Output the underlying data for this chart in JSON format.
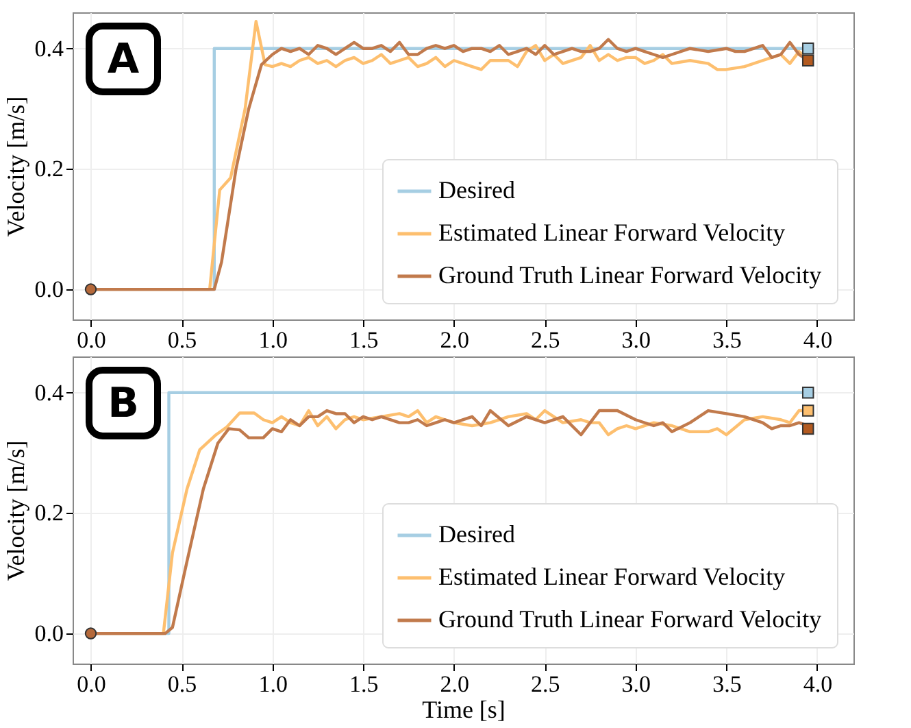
{
  "chart_data": [
    {
      "type": "line",
      "annotations": [
        "A"
      ],
      "ylabel": "Velocity [m/s]",
      "xlim": [
        -0.1,
        4.2
      ],
      "ylim": [
        -0.05,
        0.46
      ],
      "xticks": [
        {
          "value": 0,
          "label": "0.0"
        },
        0.5,
        {
          "value": 1,
          "label": "1.0"
        },
        1.5,
        {
          "value": 2,
          "label": "2.0"
        },
        2.5,
        {
          "value": 3,
          "label": "3.0"
        },
        3.5,
        {
          "value": 4,
          "label": "4.0"
        }
      ],
      "yticks": [
        {
          "value": 0,
          "label": "0.0"
        },
        {
          "value": 0.2,
          "label": "0.2"
        },
        {
          "value": 0.4,
          "label": "0.4"
        }
      ],
      "grid": true,
      "legend": "bottom right",
      "line_style": "solid",
      "marker": "none",
      "series": [
        {
          "name": "Desired",
          "color": "#a6cee3",
          "x": [
            0,
            0.68,
            0.68,
            3.95
          ],
          "values": [
            0,
            0,
            0.4,
            0.4
          ]
        },
        {
          "name": "Estimated Linear Forward Velocity",
          "color": "#fdbf6f",
          "x": [
            0,
            0.655,
            0.71,
            0.77,
            0.85,
            0.91,
            0.96,
            1.0,
            1.05,
            1.1,
            1.15,
            1.2,
            1.25,
            1.3,
            1.35,
            1.4,
            1.45,
            1.5,
            1.55,
            1.6,
            1.65,
            1.7,
            1.75,
            1.8,
            1.85,
            1.9,
            1.95,
            2.0,
            2.1,
            2.15,
            2.2,
            2.3,
            2.35,
            2.4,
            2.45,
            2.5,
            2.55,
            2.6,
            2.7,
            2.75,
            2.8,
            2.85,
            2.9,
            2.95,
            3.0,
            3.05,
            3.1,
            3.15,
            3.2,
            3.3,
            3.4,
            3.45,
            3.5,
            3.6,
            3.7,
            3.75,
            3.8,
            3.85,
            3.9,
            3.95
          ],
          "values": [
            0,
            0,
            0.165,
            0.185,
            0.3,
            0.445,
            0.373,
            0.37,
            0.375,
            0.37,
            0.38,
            0.385,
            0.375,
            0.38,
            0.37,
            0.38,
            0.385,
            0.375,
            0.38,
            0.39,
            0.375,
            0.38,
            0.385,
            0.37,
            0.375,
            0.385,
            0.37,
            0.38,
            0.37,
            0.365,
            0.38,
            0.38,
            0.37,
            0.395,
            0.405,
            0.38,
            0.39,
            0.375,
            0.385,
            0.405,
            0.38,
            0.39,
            0.38,
            0.385,
            0.385,
            0.375,
            0.38,
            0.39,
            0.375,
            0.38,
            0.375,
            0.365,
            0.365,
            0.37,
            0.38,
            0.385,
            0.39,
            0.375,
            0.395,
            0.38
          ]
        },
        {
          "name": "Ground Truth Linear Forward Velocity",
          "color": "#c17a4c",
          "x": [
            0,
            0.68,
            0.72,
            0.8,
            0.87,
            0.94,
            1.0,
            1.05,
            1.1,
            1.15,
            1.2,
            1.25,
            1.3,
            1.35,
            1.4,
            1.45,
            1.5,
            1.55,
            1.6,
            1.65,
            1.7,
            1.75,
            1.8,
            1.85,
            1.9,
            1.95,
            2.0,
            2.05,
            2.1,
            2.15,
            2.2,
            2.25,
            2.3,
            2.35,
            2.4,
            2.45,
            2.5,
            2.55,
            2.6,
            2.65,
            2.7,
            2.75,
            2.8,
            2.85,
            2.9,
            2.95,
            3.0,
            3.05,
            3.1,
            3.15,
            3.2,
            3.3,
            3.4,
            3.5,
            3.55,
            3.6,
            3.7,
            3.75,
            3.8,
            3.85,
            3.9,
            3.95
          ],
          "values": [
            0,
            0,
            0.045,
            0.2,
            0.3,
            0.373,
            0.39,
            0.4,
            0.395,
            0.4,
            0.39,
            0.405,
            0.4,
            0.39,
            0.4,
            0.41,
            0.4,
            0.4,
            0.405,
            0.395,
            0.41,
            0.39,
            0.39,
            0.4,
            0.405,
            0.4,
            0.405,
            0.395,
            0.4,
            0.4,
            0.395,
            0.405,
            0.39,
            0.395,
            0.4,
            0.39,
            0.405,
            0.39,
            0.395,
            0.4,
            0.395,
            0.395,
            0.4,
            0.415,
            0.4,
            0.395,
            0.4,
            0.395,
            0.39,
            0.385,
            0.39,
            0.4,
            0.395,
            0.4,
            0.395,
            0.395,
            0.405,
            0.385,
            0.39,
            0.41,
            0.39,
            0.38
          ]
        },
        {
          "type": "scatter",
          "marker": "circle",
          "color": "#b5693a",
          "x": [
            0
          ],
          "values": [
            0
          ]
        },
        {
          "type": "scatter",
          "marker": "square",
          "colors": [
            "#a6cee3",
            "#b35a1f"
          ],
          "x": [
            3.95,
            3.95
          ],
          "values": [
            0.4,
            0.38
          ]
        }
      ]
    },
    {
      "type": "line",
      "annotations": [
        "B"
      ],
      "xlabel": "Time [s]",
      "ylabel": "Velocity [m/s]",
      "xlim": [
        -0.1,
        4.2
      ],
      "ylim": [
        -0.05,
        0.46
      ],
      "xticks": [
        {
          "value": 0,
          "label": "0.0"
        },
        0.5,
        {
          "value": 1,
          "label": "1.0"
        },
        1.5,
        {
          "value": 2,
          "label": "2.0"
        },
        2.5,
        {
          "value": 3,
          "label": "3.0"
        },
        3.5,
        {
          "value": 4,
          "label": "4.0"
        }
      ],
      "yticks": [
        {
          "value": 0,
          "label": "0.0"
        },
        {
          "value": 0.2,
          "label": "0.2"
        },
        {
          "value": 0.4,
          "label": "0.4"
        }
      ],
      "grid": true,
      "legend": "bottom right",
      "line_style": "solid",
      "marker": "none",
      "series": [
        {
          "name": "Desired",
          "color": "#a6cee3",
          "x": [
            0,
            0.43,
            0.43,
            3.95
          ],
          "values": [
            0,
            0,
            0.4,
            0.4
          ]
        },
        {
          "name": "Estimated Linear Forward Velocity",
          "color": "#fdbf6f",
          "x": [
            0,
            0.4,
            0.45,
            0.53,
            0.6,
            0.69,
            0.75,
            0.82,
            0.9,
            0.95,
            1.0,
            1.05,
            1.1,
            1.15,
            1.2,
            1.25,
            1.3,
            1.35,
            1.4,
            1.45,
            1.5,
            1.6,
            1.7,
            1.75,
            1.8,
            1.85,
            1.9,
            1.95,
            2.0,
            2.1,
            2.2,
            2.3,
            2.4,
            2.45,
            2.5,
            2.55,
            2.6,
            2.7,
            2.75,
            2.8,
            2.85,
            2.9,
            2.95,
            3.0,
            3.1,
            3.2,
            3.3,
            3.4,
            3.45,
            3.5,
            3.6,
            3.7,
            3.8,
            3.85,
            3.9,
            3.95
          ],
          "values": [
            0,
            0,
            0.134,
            0.24,
            0.305,
            0.33,
            0.343,
            0.366,
            0.366,
            0.355,
            0.35,
            0.36,
            0.35,
            0.345,
            0.37,
            0.345,
            0.36,
            0.34,
            0.355,
            0.36,
            0.355,
            0.36,
            0.365,
            0.36,
            0.37,
            0.35,
            0.36,
            0.355,
            0.35,
            0.345,
            0.35,
            0.36,
            0.365,
            0.355,
            0.37,
            0.36,
            0.35,
            0.355,
            0.35,
            0.35,
            0.33,
            0.34,
            0.345,
            0.34,
            0.35,
            0.345,
            0.335,
            0.335,
            0.34,
            0.33,
            0.355,
            0.36,
            0.355,
            0.35,
            0.37,
            0.37
          ]
        },
        {
          "name": "Ground Truth Linear Forward Velocity",
          "color": "#c17a4c",
          "x": [
            0,
            0.41,
            0.45,
            0.53,
            0.62,
            0.7,
            0.76,
            0.82,
            0.87,
            0.95,
            1.0,
            1.05,
            1.1,
            1.15,
            1.2,
            1.25,
            1.3,
            1.35,
            1.4,
            1.45,
            1.5,
            1.55,
            1.6,
            1.7,
            1.75,
            1.8,
            1.85,
            1.9,
            1.95,
            2.0,
            2.1,
            2.15,
            2.2,
            2.3,
            2.4,
            2.5,
            2.6,
            2.7,
            2.8,
            2.9,
            3.0,
            3.1,
            3.15,
            3.2,
            3.3,
            3.4,
            3.5,
            3.6,
            3.7,
            3.75,
            3.8,
            3.85,
            3.9,
            3.95
          ],
          "values": [
            0,
            0,
            0.01,
            0.12,
            0.24,
            0.316,
            0.34,
            0.338,
            0.325,
            0.325,
            0.34,
            0.335,
            0.355,
            0.345,
            0.36,
            0.36,
            0.37,
            0.365,
            0.365,
            0.35,
            0.36,
            0.355,
            0.36,
            0.35,
            0.35,
            0.355,
            0.345,
            0.35,
            0.355,
            0.35,
            0.36,
            0.345,
            0.37,
            0.345,
            0.36,
            0.35,
            0.36,
            0.33,
            0.37,
            0.37,
            0.355,
            0.345,
            0.35,
            0.335,
            0.35,
            0.37,
            0.365,
            0.36,
            0.35,
            0.34,
            0.345,
            0.345,
            0.35,
            0.345
          ]
        },
        {
          "type": "scatter",
          "marker": "circle",
          "color": "#b5693a",
          "x": [
            0
          ],
          "values": [
            0
          ]
        },
        {
          "type": "scatter",
          "marker": "square",
          "colors": [
            "#a6cee3",
            "#fdbf6f",
            "#b35a1f"
          ],
          "x": [
            3.95,
            3.95,
            3.95
          ],
          "values": [
            0.4,
            0.37,
            0.34
          ]
        }
      ]
    }
  ]
}
